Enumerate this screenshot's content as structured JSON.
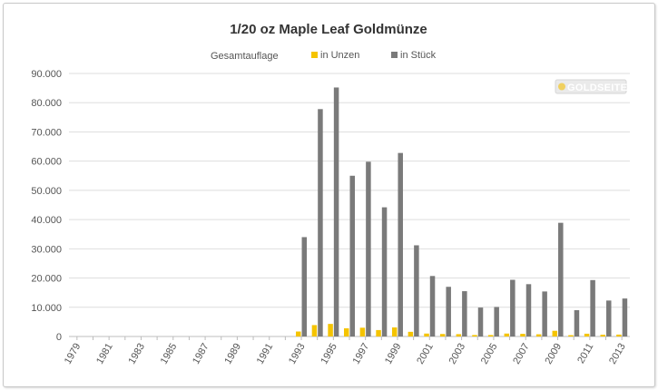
{
  "chart_data": {
    "type": "bar",
    "title": "1/20 oz Maple Leaf Goldmünze",
    "legend_title": "Gesamtauflage",
    "legend_position": "top-center",
    "xlabel": "",
    "ylabel": "",
    "ylim": [
      0,
      90000
    ],
    "yticks": [
      "0",
      "10.000",
      "20.000",
      "30.000",
      "40.000",
      "50.000",
      "60.000",
      "70.000",
      "80.000",
      "90.000"
    ],
    "grid": true,
    "categories": [
      "1979",
      "1980",
      "1981",
      "1982",
      "1983",
      "1984",
      "1985",
      "1986",
      "1987",
      "1988",
      "1989",
      "1990",
      "1991",
      "1992",
      "1993",
      "1994",
      "1995",
      "1996",
      "1997",
      "1998",
      "1999",
      "2000",
      "2001",
      "2002",
      "2003",
      "2004",
      "2005",
      "2006",
      "2007",
      "2008",
      "2009",
      "2010",
      "2011",
      "2012",
      "2013"
    ],
    "xtick_labels": [
      "1979",
      "1981",
      "1983",
      "1985",
      "1987",
      "1989",
      "1991",
      "1993",
      "1995",
      "1997",
      "1999",
      "2001",
      "2003",
      "2005",
      "2007",
      "2009",
      "2011",
      "2013"
    ],
    "series": [
      {
        "name": "in Unzen",
        "color": "#f5c400",
        "values": [
          0,
          0,
          0,
          0,
          0,
          0,
          0,
          0,
          0,
          0,
          0,
          0,
          0,
          0,
          1700,
          3900,
          4300,
          2800,
          3000,
          2200,
          3100,
          1600,
          1000,
          850,
          800,
          500,
          500,
          1000,
          900,
          750,
          1950,
          450,
          950,
          600,
          650
        ]
      },
      {
        "name": "in Stück",
        "color": "#7a7a7a",
        "values": [
          0,
          0,
          0,
          0,
          0,
          0,
          0,
          0,
          0,
          0,
          0,
          0,
          0,
          0,
          34000,
          77800,
          85200,
          55000,
          59800,
          44200,
          62800,
          31200,
          20700,
          17000,
          15500,
          9900,
          10100,
          19400,
          17900,
          15400,
          38900,
          9000,
          19300,
          12300,
          13000
        ]
      }
    ]
  },
  "watermark": {
    "text": "GOLDSEITEN.DE",
    "icon": "gold-coin-logo"
  }
}
